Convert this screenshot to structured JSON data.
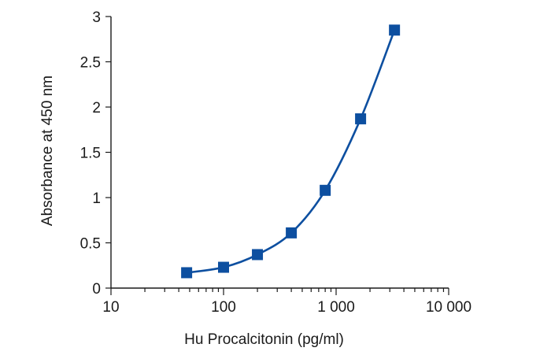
{
  "chart_data": {
    "type": "scatter",
    "title": "",
    "xlabel": "Hu Procalcitonin (pg/ml)",
    "ylabel": "Absorbance at 450 nm",
    "x_scale": "log",
    "xlim": [
      10,
      10000
    ],
    "ylim": [
      0,
      3
    ],
    "x_ticks": [
      {
        "value": 10,
        "label": "10"
      },
      {
        "value": 100,
        "label": "100"
      },
      {
        "value": 1000,
        "label": "1 000"
      },
      {
        "value": 10000,
        "label": "10 000"
      }
    ],
    "y_ticks": [
      {
        "value": 0,
        "label": "0"
      },
      {
        "value": 0.5,
        "label": "0.5"
      },
      {
        "value": 1,
        "label": "1"
      },
      {
        "value": 1.5,
        "label": "1.5"
      },
      {
        "value": 2,
        "label": "2"
      },
      {
        "value": 2.5,
        "label": "2.5"
      },
      {
        "value": 3,
        "label": "3"
      }
    ],
    "grid": false,
    "legend": "none",
    "series": [
      {
        "x": [
          47,
          100,
          200,
          400,
          800,
          1650,
          3300
        ],
        "y": [
          0.17,
          0.23,
          0.37,
          0.61,
          1.08,
          1.87,
          2.85
        ],
        "marker": "square",
        "fit_curve": true
      }
    ],
    "colors": {
      "series": "#0d4fa0",
      "axis": "#1a1a1a"
    }
  }
}
